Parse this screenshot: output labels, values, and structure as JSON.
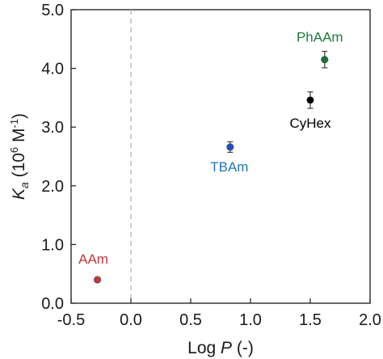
{
  "chart_data": {
    "type": "scatter",
    "xlabel": "Log P (-)",
    "ylabel": "Ka (10^6 M^-1)",
    "xlim": [
      -0.5,
      2.0
    ],
    "ylim": [
      0.0,
      5.0
    ],
    "xticks": [
      "-0.5",
      "0.0",
      "0.5",
      "1.0",
      "1.5",
      "2.0"
    ],
    "yticks": [
      "0.0",
      "1.0",
      "2.0",
      "3.0",
      "4.0",
      "5.0"
    ],
    "reference_line": {
      "x": 0.0,
      "style": "dashed"
    },
    "grid": false,
    "points": [
      {
        "label": "AAm",
        "x": -0.28,
        "y": 0.4,
        "err": 0.03,
        "color": "#c0393b"
      },
      {
        "label": "TBAm",
        "x": 0.83,
        "y": 2.66,
        "err": 0.09,
        "color": "#1f4fbf"
      },
      {
        "label": "CyHex",
        "x": 1.5,
        "y": 3.46,
        "err": 0.14,
        "color": "#000000"
      },
      {
        "label": "PhAAm",
        "x": 1.62,
        "y": 4.15,
        "err": 0.14,
        "color": "#1f6e3a"
      }
    ],
    "label_colors": {
      "AAm": "#c0393b",
      "TBAm": "#1f77b4",
      "CyHex": "#000000",
      "PhAAm": "#1f7a3a"
    }
  }
}
